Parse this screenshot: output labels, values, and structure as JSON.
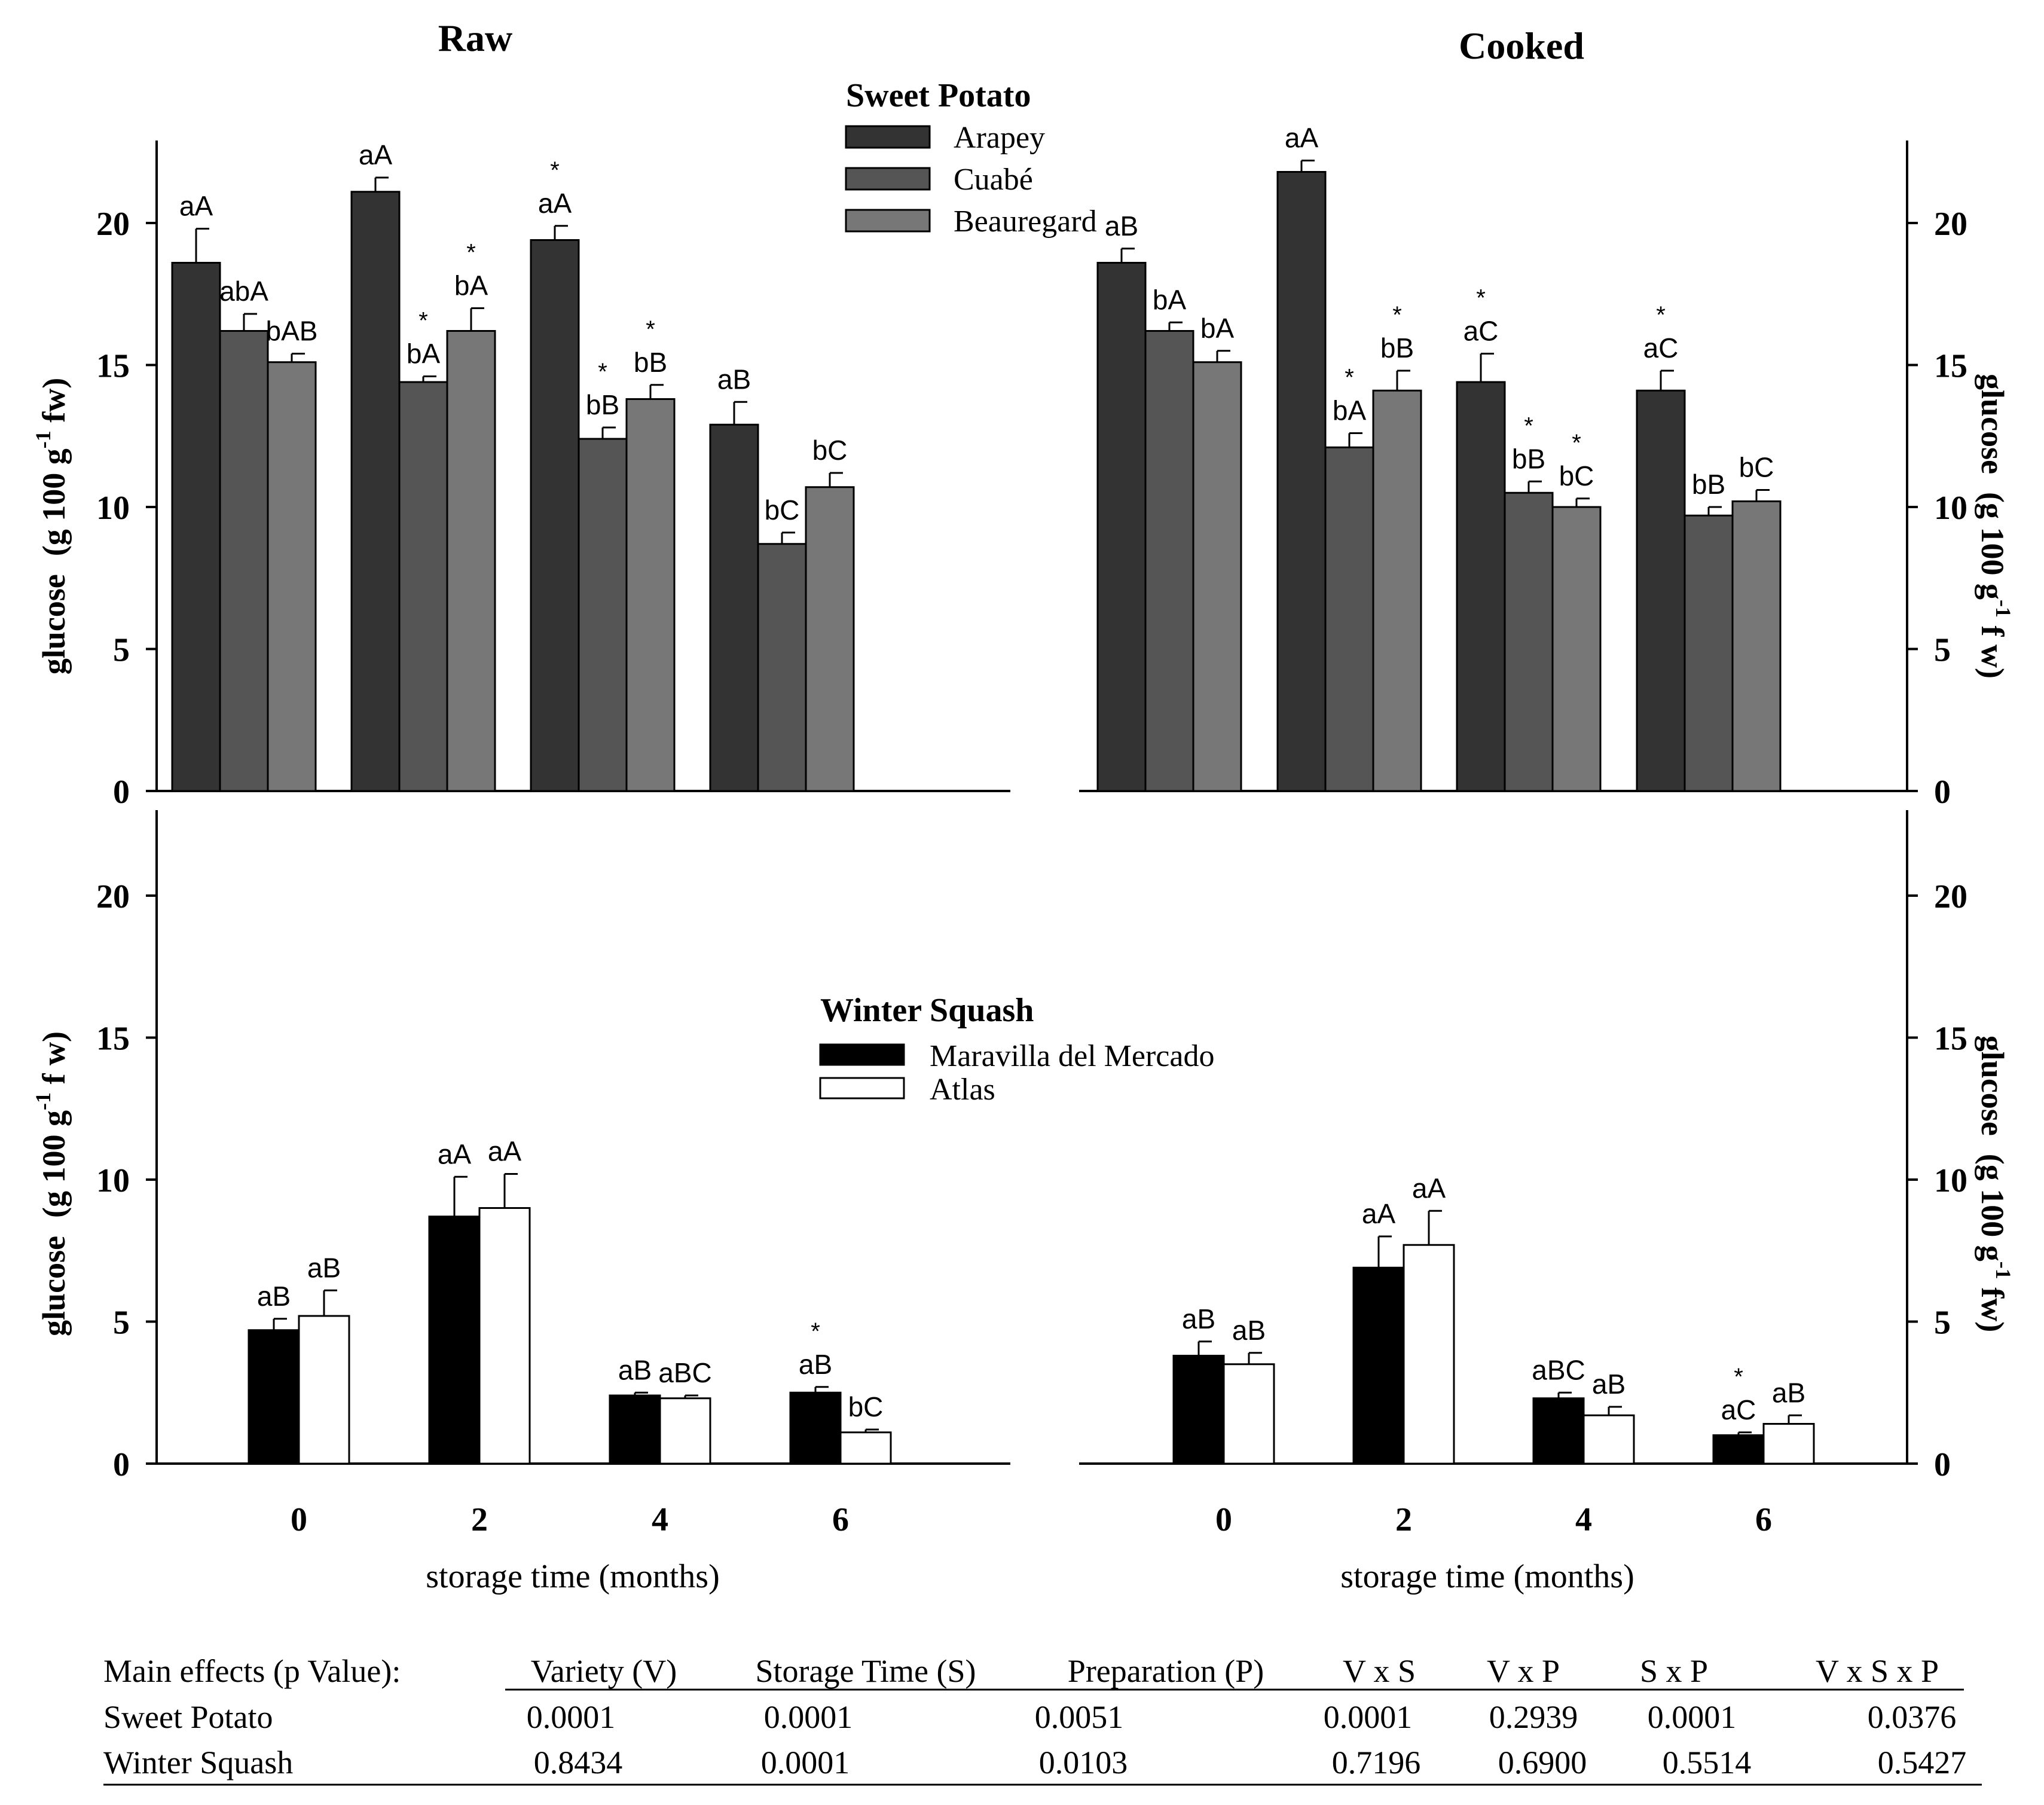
{
  "chart_data": [
    {
      "type": "bar",
      "id": "raw_sweet",
      "title": "Raw",
      "ylabel": "glucose",
      "ylabel_units": "(g 100 g",
      "ylabel_exp": "-1",
      "ylabel_tail": " fw)",
      "ylim": [
        0,
        23
      ],
      "yticks": [
        0,
        5,
        10,
        15,
        20
      ],
      "categories": [
        "0",
        "2",
        "4",
        "6"
      ],
      "series": [
        {
          "name": "Arapey",
          "color": "#333333",
          "values": [
            18.6,
            21.1,
            19.4,
            12.9
          ],
          "errors": [
            1.2,
            0.5,
            0.5,
            0.8
          ],
          "labels": [
            "aA",
            "aA",
            "aA",
            "aB"
          ],
          "stars": [
            false,
            false,
            true,
            false
          ]
        },
        {
          "name": "Cuabé",
          "color": "#555555",
          "values": [
            16.2,
            14.4,
            12.4,
            8.7
          ],
          "errors": [
            0.6,
            0.2,
            0.4,
            0.4
          ],
          "labels": [
            "abA",
            "bA",
            "bB",
            "bC"
          ],
          "stars": [
            false,
            true,
            true,
            false
          ]
        },
        {
          "name": "Beauregard",
          "color": "#777777",
          "values": [
            15.1,
            16.2,
            13.8,
            10.7
          ],
          "errors": [
            0.3,
            0.8,
            0.5,
            0.5
          ],
          "labels": [
            "bAB",
            "bA",
            "bB",
            "bC"
          ],
          "stars": [
            false,
            true,
            true,
            false
          ]
        }
      ]
    },
    {
      "type": "bar",
      "id": "cooked_sweet",
      "title": "Cooked",
      "ylabel": "glucose",
      "ylabel_units": "(g 100 g",
      "ylabel_exp": "-1",
      "ylabel_tail": " f w)",
      "ylim": [
        0,
        23
      ],
      "yticks": [
        0,
        5,
        10,
        15,
        20
      ],
      "categories": [
        "0",
        "2",
        "4",
        "6"
      ],
      "series": [
        {
          "name": "Arapey",
          "color": "#333333",
          "values": [
            18.6,
            21.8,
            14.4,
            14.1
          ],
          "errors": [
            0.5,
            0.4,
            1.0,
            0.7
          ],
          "labels": [
            "aB",
            "aA",
            "aC",
            "aC"
          ],
          "stars": [
            false,
            false,
            true,
            true
          ]
        },
        {
          "name": "Cuabé",
          "color": "#555555",
          "values": [
            16.2,
            12.1,
            10.5,
            9.7
          ],
          "errors": [
            0.3,
            0.5,
            0.4,
            0.3
          ],
          "labels": [
            "bA",
            "bA",
            "bB",
            "bB"
          ],
          "stars": [
            false,
            true,
            true,
            false
          ]
        },
        {
          "name": "Beauregard",
          "color": "#777777",
          "values": [
            15.1,
            14.1,
            10.0,
            10.2
          ],
          "errors": [
            0.4,
            0.7,
            0.3,
            0.4
          ],
          "labels": [
            "bA",
            "bB",
            "bC",
            "bC"
          ],
          "stars": [
            false,
            true,
            true,
            false
          ]
        }
      ]
    },
    {
      "type": "bar",
      "id": "raw_squash",
      "title": "",
      "ylabel": "glucose",
      "ylabel_units": "(g 100 g",
      "ylabel_exp": "-1",
      "ylabel_tail": " f w)",
      "xlabel": "storage time (months)",
      "ylim": [
        0,
        23
      ],
      "yticks": [
        0,
        5,
        10,
        15,
        20
      ],
      "categories": [
        "0",
        "2",
        "4",
        "6"
      ],
      "series": [
        {
          "name": "Maravilla del Mercado",
          "color": "#000000",
          "values": [
            4.7,
            8.7,
            2.4,
            2.5
          ],
          "errors": [
            0.4,
            1.4,
            0.1,
            0.2
          ],
          "labels": [
            "aB",
            "aA",
            "aB",
            "aB"
          ],
          "stars": [
            false,
            false,
            false,
            true
          ]
        },
        {
          "name": "Atlas",
          "color": "#ffffff",
          "values": [
            5.2,
            9.0,
            2.3,
            1.1
          ],
          "errors": [
            0.9,
            1.2,
            0.1,
            0.1
          ],
          "labels": [
            "aB",
            "aA",
            "aBC",
            "bC"
          ],
          "stars": [
            false,
            false,
            false,
            false
          ]
        }
      ]
    },
    {
      "type": "bar",
      "id": "cooked_squash",
      "title": "",
      "ylabel": "glucose",
      "ylabel_units": "(g 100 g",
      "ylabel_exp": "-1",
      "ylabel_tail": " fw)",
      "xlabel": "storage time (months)",
      "ylim": [
        0,
        23
      ],
      "yticks": [
        0,
        5,
        10,
        15,
        20
      ],
      "categories": [
        "0",
        "2",
        "4",
        "6"
      ],
      "series": [
        {
          "name": "Maravilla del Mercado",
          "color": "#000000",
          "values": [
            3.8,
            6.9,
            2.3,
            1.0
          ],
          "errors": [
            0.5,
            1.1,
            0.2,
            0.1
          ],
          "labels": [
            "aB",
            "aA",
            "aBC",
            "aC"
          ],
          "stars": [
            false,
            false,
            false,
            true
          ]
        },
        {
          "name": "Atlas",
          "color": "#ffffff",
          "values": [
            3.5,
            7.7,
            1.7,
            1.4
          ],
          "errors": [
            0.4,
            1.2,
            0.3,
            0.3
          ],
          "labels": [
            "aB",
            "aA",
            "aB",
            "aB"
          ],
          "stars": [
            false,
            false,
            false,
            false
          ]
        }
      ]
    }
  ],
  "legends": {
    "sweet_potato": {
      "title": "Sweet Potato",
      "entries": [
        "Arapey",
        "Cuabé",
        "Beauregard"
      ]
    },
    "winter_squash": {
      "title": "Winter Squash",
      "entries": [
        "Maravilla del Mercado",
        "Atlas"
      ]
    }
  },
  "stats_table": {
    "header": [
      "Main effects (p Value):",
      "Variety (V)",
      "Storage Time (S)",
      "Preparation (P)",
      "V x S",
      "V x P",
      "S x P",
      "V x S x P"
    ],
    "rows": [
      [
        "Sweet Potato",
        "0.0001",
        "0.0001",
        "0.0051",
        "0.0001",
        "0.2939",
        "0.0001",
        "0.0376"
      ],
      [
        "Winter Squash",
        "0.8434",
        "0.0001",
        "0.0103",
        "0.7196",
        "0.6900",
        "0.5514",
        "0.5427"
      ]
    ]
  }
}
